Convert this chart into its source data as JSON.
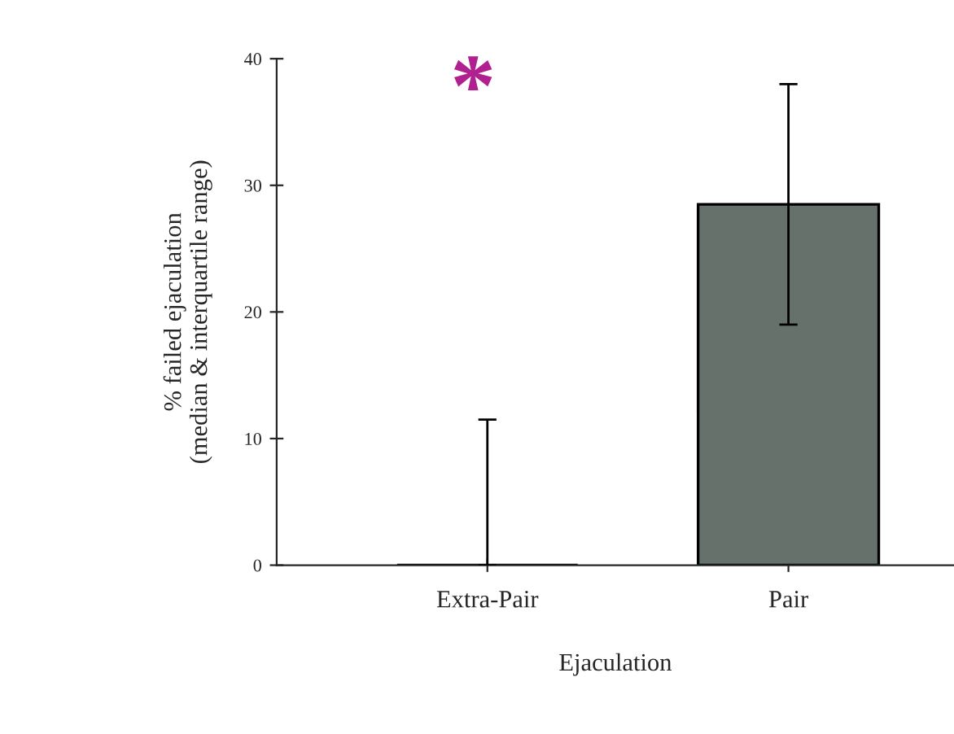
{
  "chart_data": {
    "type": "bar",
    "xlabel": "Ejaculation",
    "ylabel": "% failed ejaculation\n(median & interquartile range)",
    "categories": [
      "Extra-Pair",
      "Pair"
    ],
    "values": [
      0,
      28.5
    ],
    "errors": [
      [
        0,
        11.5
      ],
      [
        19,
        38
      ]
    ],
    "color": "#66716c",
    "ylim": [
      0,
      40
    ],
    "yticks": [
      0,
      10,
      20,
      30,
      40
    ],
    "grid": false,
    "legend": false,
    "annotations": [
      "*"
    ]
  }
}
